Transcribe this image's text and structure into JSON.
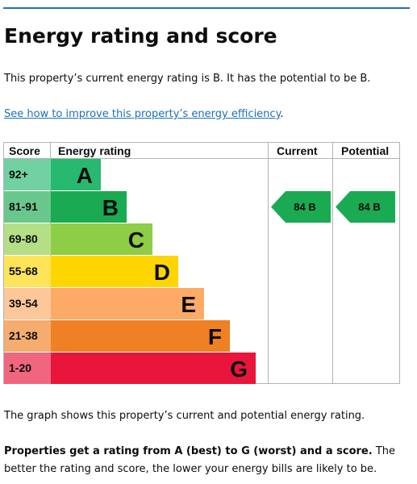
{
  "header": {
    "title": "Energy rating and score"
  },
  "intro": "This property’s current energy rating is B. It has the potential to be B.",
  "link": {
    "text": "See how to improve this property’s energy efficiency",
    "after": "."
  },
  "table": {
    "headers": {
      "score": "Score",
      "rating": "Energy rating",
      "current": "Current",
      "potential": "Potential"
    },
    "bands": [
      {
        "score": "92+",
        "rating": "A",
        "color": "#27b96f"
      },
      {
        "score": "81-91",
        "rating": "B",
        "color": "#1aaa52"
      },
      {
        "score": "69-80",
        "rating": "C",
        "color": "#8dce46"
      },
      {
        "score": "55-68",
        "rating": "D",
        "color": "#ffd500"
      },
      {
        "score": "39-54",
        "rating": "E",
        "color": "#fcaa65"
      },
      {
        "score": "21-38",
        "rating": "F",
        "color": "#ef8023"
      },
      {
        "score": "1-20",
        "rating": "G",
        "color": "#e9153b"
      }
    ],
    "current": {
      "label": "84 B",
      "color": "#1aaa52"
    },
    "potential": {
      "label": "84 B",
      "color": "#1aaa52"
    }
  },
  "footer": {
    "note": "The graph shows this property’s current and potential energy rating.",
    "bold": "Properties get a rating from A (best) to G (worst) and a score.",
    "rest": " The better the rating and score, the lower your energy bills are likely to be."
  }
}
